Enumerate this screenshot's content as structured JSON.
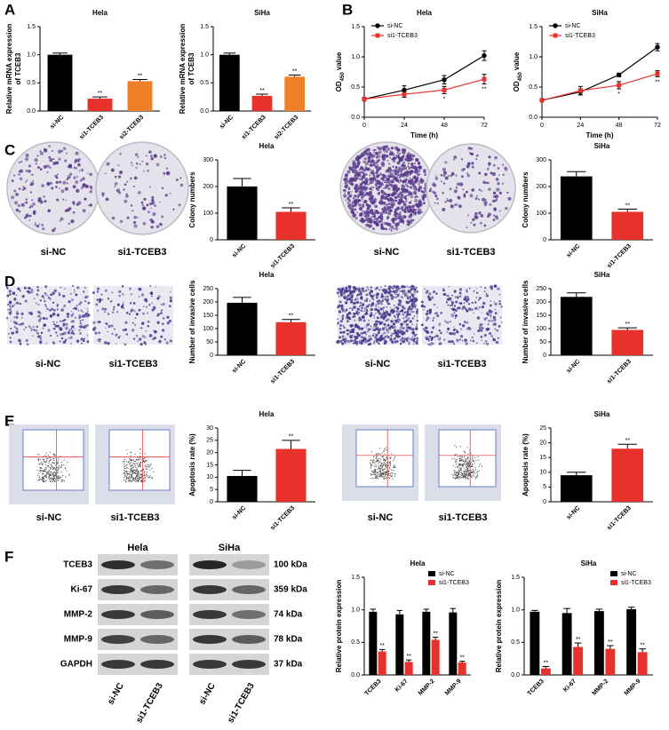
{
  "panels": [
    "A",
    "B",
    "C",
    "D",
    "E",
    "F"
  ],
  "image_labels": {
    "C": [
      "si-NC",
      "si1-TCEB3",
      "si-NC",
      "si1-TCEB3"
    ],
    "D": [
      "si-NC",
      "si1-TCEB3",
      "si-NC",
      "si1-TCEB3"
    ],
    "E": [
      "si-NC",
      "si1-TCEB3",
      "si-NC",
      "si1-TCEB3"
    ]
  },
  "blot": {
    "groups": [
      "Hela",
      "SiHa"
    ],
    "proteins": [
      "TCEB3",
      "Ki-67",
      "MMP-2",
      "MMP-9",
      "GAPDH"
    ],
    "sizes": [
      "100 kDa",
      "359 kDa",
      "74 kDa",
      "78 kDa",
      "37 kDa"
    ],
    "lanes": [
      "si-NC",
      "si1-TCEB3",
      "si-NC",
      "si1-TCEB3"
    ]
  },
  "chart_data": [
    {
      "type": "bar",
      "title": "Hela",
      "ylabel_lines": [
        "Relative mRNA expression",
        "of TCEB3"
      ],
      "categories": [
        "si-NC",
        "si1-TCEB3",
        "si2-TCEB3"
      ],
      "values": [
        1.0,
        0.22,
        0.53
      ],
      "errors": [
        0.03,
        0.03,
        0.03
      ],
      "colors": [
        "#000000",
        "#e8312a",
        "#f07f2a"
      ],
      "significance": [
        null,
        "**",
        "**"
      ],
      "ylim": [
        0,
        1.5
      ],
      "yticks": [
        {
          "value": 0,
          "label": "0.0"
        },
        {
          "value": 0.5,
          "label": "0.5"
        },
        {
          "value": 1,
          "label": "1.0"
        },
        {
          "value": 1.5,
          "label": "1.5"
        }
      ]
    },
    {
      "type": "bar",
      "title": "SiHa",
      "ylabel_lines": [
        "Relative mRNA expression",
        "of TCEB3"
      ],
      "categories": [
        "si-NC",
        "si1-TCEB3",
        "si2-TCEB3"
      ],
      "values": [
        1.0,
        0.27,
        0.61
      ],
      "errors": [
        0.03,
        0.03,
        0.03
      ],
      "colors": [
        "#000000",
        "#e8312a",
        "#f07f2a"
      ],
      "significance": [
        null,
        "**",
        "**"
      ],
      "ylim": [
        0,
        1.5
      ],
      "yticks": [
        {
          "value": 0,
          "label": "0.0"
        },
        {
          "value": 0.5,
          "label": "0.5"
        },
        {
          "value": 1,
          "label": "1.0"
        },
        {
          "value": 1.5,
          "label": "1.5"
        }
      ]
    },
    {
      "type": "line",
      "title": "Hela",
      "ylabel": [
        "OD",
        "450",
        " value"
      ],
      "xlabel": "Time (h)",
      "x": [
        0,
        24,
        48,
        72
      ],
      "xlim": [
        0,
        72
      ],
      "xticks": [
        0,
        24,
        48,
        72
      ],
      "ylim": [
        0,
        1.5
      ],
      "yticks": [
        {
          "value": 0,
          "label": "0.0"
        },
        {
          "value": 0.5,
          "label": "0.5"
        },
        {
          "value": 1,
          "label": "1.0"
        },
        {
          "value": 1.5,
          "label": "1.5"
        }
      ],
      "legend": "upper left",
      "series": [
        {
          "name": "si-NC",
          "color": "#000000",
          "marker": "circle",
          "values": [
            0.3,
            0.45,
            0.62,
            1.02
          ],
          "errors": [
            0.03,
            0.07,
            0.07,
            0.08
          ]
        },
        {
          "name": "si1-TCEB3",
          "color": "#e8312a",
          "marker": "square",
          "values": [
            0.3,
            0.38,
            0.45,
            0.63
          ],
          "errors": [
            0.03,
            0.05,
            0.06,
            0.08
          ],
          "significance": [
            null,
            null,
            "*",
            "**"
          ]
        }
      ]
    },
    {
      "type": "line",
      "title": "SiHa",
      "ylabel": [
        "OD",
        "450",
        " value"
      ],
      "xlabel": "Time (h)",
      "x": [
        0,
        24,
        48,
        72
      ],
      "xlim": [
        0,
        72
      ],
      "xticks": [
        0,
        24,
        48,
        72
      ],
      "ylim": [
        0,
        1.5
      ],
      "yticks": [
        {
          "value": 0,
          "label": "0.0"
        },
        {
          "value": 0.5,
          "label": "0.5"
        },
        {
          "value": 1,
          "label": "1.0"
        },
        {
          "value": 1.5,
          "label": "1.5"
        }
      ],
      "legend": "upper left",
      "series": [
        {
          "name": "si-NC",
          "color": "#000000",
          "marker": "circle",
          "values": [
            0.28,
            0.42,
            0.7,
            1.16
          ],
          "errors": [
            0.03,
            0.05,
            0.03,
            0.06
          ]
        },
        {
          "name": "si1-TCEB3",
          "color": "#e8312a",
          "marker": "square",
          "values": [
            0.28,
            0.44,
            0.53,
            0.72
          ],
          "errors": [
            0.03,
            0.07,
            0.06,
            0.05
          ],
          "significance": [
            null,
            null,
            "*",
            "**"
          ]
        }
      ]
    },
    {
      "type": "bar",
      "title": "Hela",
      "ylabel": "Colony numbers",
      "categories": [
        "si-NC",
        "si1-TCEB3"
      ],
      "values": [
        200,
        105
      ],
      "errors": [
        30,
        15
      ],
      "colors": [
        "#000000",
        "#e8312a"
      ],
      "significance": [
        null,
        "**"
      ],
      "ylim": [
        0,
        300
      ],
      "yticks": [
        0,
        100,
        200,
        300
      ]
    },
    {
      "type": "bar",
      "title": "SiHa",
      "ylabel": "Colony numbers",
      "categories": [
        "si-NC",
        "si1-TCEB3"
      ],
      "values": [
        238,
        105
      ],
      "errors": [
        18,
        10
      ],
      "colors": [
        "#000000",
        "#e8312a"
      ],
      "significance": [
        null,
        "**"
      ],
      "ylim": [
        0,
        300
      ],
      "yticks": [
        0,
        100,
        200,
        300
      ]
    },
    {
      "type": "bar",
      "title": "Hela",
      "ylabel": "Number of invasive cells",
      "categories": [
        "si-NC",
        "si1-TCEB3"
      ],
      "values": [
        197,
        124
      ],
      "errors": [
        20,
        10
      ],
      "colors": [
        "#000000",
        "#e8312a"
      ],
      "significance": [
        null,
        "**"
      ],
      "ylim": [
        0,
        250
      ],
      "yticks": [
        0,
        50,
        100,
        150,
        200,
        250
      ]
    },
    {
      "type": "bar",
      "title": "SiHa",
      "ylabel": "Number of invasive cells",
      "categories": [
        "si-NC",
        "si1-TCEB3"
      ],
      "values": [
        219,
        95
      ],
      "errors": [
        15,
        8
      ],
      "colors": [
        "#000000",
        "#e8312a"
      ],
      "significance": [
        null,
        "**"
      ],
      "ylim": [
        0,
        250
      ],
      "yticks": [
        0,
        50,
        100,
        150,
        200,
        250
      ]
    },
    {
      "type": "bar",
      "title": "Hela",
      "ylabel": "Apoptosis rate (%)",
      "categories": [
        "si-NC",
        "si1-TCEB3"
      ],
      "values": [
        10.5,
        21.5
      ],
      "errors": [
        2.3,
        3.5
      ],
      "colors": [
        "#000000",
        "#e8312a"
      ],
      "significance": [
        null,
        "**"
      ],
      "ylim": [
        0,
        30
      ],
      "yticks": [
        0,
        5,
        10,
        15,
        20,
        25,
        30
      ]
    },
    {
      "type": "bar",
      "title": "SiHa",
      "ylabel": "Apoptosis rate (%)",
      "categories": [
        "si-NC",
        "si1-TCEB3"
      ],
      "values": [
        9,
        18
      ],
      "errors": [
        1,
        1.5
      ],
      "colors": [
        "#000000",
        "#e8312a"
      ],
      "significance": [
        null,
        "**"
      ],
      "ylim": [
        0,
        25
      ],
      "yticks": [
        0,
        5,
        10,
        15,
        20,
        25
      ]
    },
    {
      "type": "grouped_bar",
      "title": "Hela",
      "ylabel": "Relative protein expression",
      "categories": [
        "TCEB3",
        "Ki-67",
        "MMP-2",
        "MMP-9"
      ],
      "ylim": [
        0,
        1.5
      ],
      "yticks": [
        {
          "value": 0,
          "label": "0.0"
        },
        {
          "value": 0.5,
          "label": "0.5"
        },
        {
          "value": 1,
          "label": "1.0"
        },
        {
          "value": 1.5,
          "label": "1.5"
        }
      ],
      "legend": "upper right",
      "series": [
        {
          "name": "si-NC",
          "color": "#000000",
          "values": [
            0.97,
            0.93,
            0.97,
            0.96
          ],
          "errors": [
            0.04,
            0.06,
            0.04,
            0.06
          ]
        },
        {
          "name": "si1-TCEB3",
          "color": "#e8312a",
          "values": [
            0.36,
            0.2,
            0.54,
            0.19
          ],
          "errors": [
            0.03,
            0.03,
            0.04,
            0.02
          ],
          "significance": [
            "**",
            "**",
            "**",
            "**"
          ]
        }
      ]
    },
    {
      "type": "grouped_bar",
      "title": "SiHa",
      "ylabel": "Relative protein expression",
      "categories": [
        "TCEB3",
        "Ki-67",
        "MMP-2",
        "MMP-9"
      ],
      "ylim": [
        0,
        1.5
      ],
      "yticks": [
        {
          "value": 0,
          "label": "0.0"
        },
        {
          "value": 0.5,
          "label": "0.5"
        },
        {
          "value": 1,
          "label": "1.0"
        },
        {
          "value": 1.5,
          "label": "1.5"
        }
      ],
      "legend": "upper right",
      "series": [
        {
          "name": "si-NC",
          "color": "#000000",
          "values": [
            0.97,
            0.95,
            0.98,
            1.01
          ],
          "errors": [
            0.02,
            0.07,
            0.03,
            0.03
          ],
          "significance": null
        },
        {
          "name": "si1-TCEB3",
          "color": "#e8312a",
          "values": [
            0.1,
            0.43,
            0.4,
            0.35
          ],
          "errors": [
            0.03,
            0.06,
            0.05,
            0.05
          ],
          "significance": [
            "**",
            "**",
            "**",
            "**"
          ]
        }
      ]
    }
  ]
}
